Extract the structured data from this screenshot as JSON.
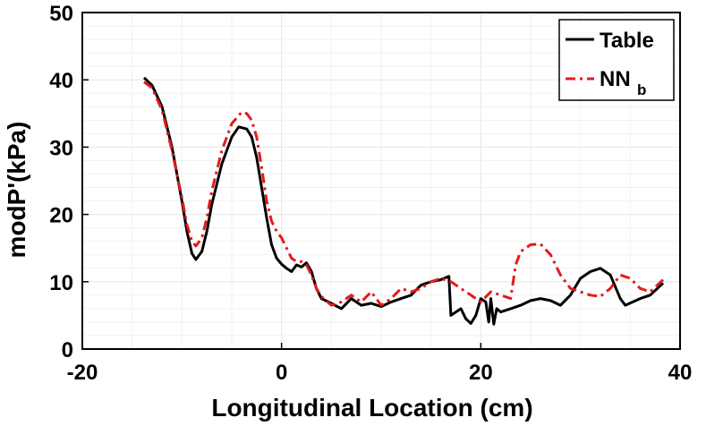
{
  "chart_data": {
    "type": "line",
    "title": "",
    "xlabel": "Longitudinal Location (cm)",
    "ylabel": "modP'(kPa)",
    "xlim": [
      -20,
      40
    ],
    "ylim": [
      0,
      50
    ],
    "xticks": [
      -20,
      0,
      20,
      40
    ],
    "yticks": [
      0,
      10,
      20,
      30,
      40,
      50
    ],
    "xtick_labels": [
      "-20",
      "0",
      "20",
      "40"
    ],
    "ytick_labels": [
      "0",
      "10",
      "20",
      "30",
      "40",
      "50"
    ],
    "grid": true,
    "legend_position": "top-right",
    "series": [
      {
        "name": "Table",
        "name_main": "Table",
        "name_sub": "",
        "color": "#000000",
        "dash": "solid",
        "points": [
          [
            -13.8,
            40.3
          ],
          [
            -13,
            39.2
          ],
          [
            -12,
            36.0
          ],
          [
            -11,
            30.0
          ],
          [
            -10,
            22.0
          ],
          [
            -9.5,
            17.5
          ],
          [
            -9,
            14.2
          ],
          [
            -8.6,
            13.3
          ],
          [
            -8,
            14.5
          ],
          [
            -7.5,
            17.5
          ],
          [
            -7,
            21.5
          ],
          [
            -6,
            27.5
          ],
          [
            -5,
            31.5
          ],
          [
            -4.3,
            33.0
          ],
          [
            -3.5,
            32.7
          ],
          [
            -3,
            31.5
          ],
          [
            -2.5,
            28.5
          ],
          [
            -2,
            24.0
          ],
          [
            -1.5,
            19.5
          ],
          [
            -1,
            15.5
          ],
          [
            -0.5,
            13.5
          ],
          [
            0,
            12.6
          ],
          [
            0.5,
            12.0
          ],
          [
            1,
            11.5
          ],
          [
            1.5,
            12.5
          ],
          [
            2,
            12.2
          ],
          [
            2.5,
            12.8
          ],
          [
            3,
            11.5
          ],
          [
            3.5,
            9.0
          ],
          [
            4,
            7.5
          ],
          [
            5,
            6.8
          ],
          [
            6,
            6.0
          ],
          [
            7,
            7.5
          ],
          [
            8,
            6.5
          ],
          [
            9,
            6.8
          ],
          [
            10,
            6.3
          ],
          [
            11,
            7.0
          ],
          [
            12,
            7.5
          ],
          [
            13,
            8.0
          ],
          [
            14,
            9.5
          ],
          [
            15,
            10.0
          ],
          [
            16,
            10.3
          ],
          [
            16.8,
            10.8
          ],
          [
            17,
            5.0
          ],
          [
            17.5,
            5.5
          ],
          [
            18,
            6.0
          ],
          [
            18.5,
            4.5
          ],
          [
            19,
            3.8
          ],
          [
            19.5,
            5.0
          ],
          [
            20,
            7.5
          ],
          [
            20.5,
            7.0
          ],
          [
            20.8,
            4.0
          ],
          [
            21,
            7.5
          ],
          [
            21.3,
            3.7
          ],
          [
            21.6,
            6.0
          ],
          [
            22,
            5.5
          ],
          [
            23,
            6.0
          ],
          [
            24,
            6.5
          ],
          [
            25,
            7.2
          ],
          [
            26,
            7.5
          ],
          [
            27,
            7.2
          ],
          [
            28,
            6.5
          ],
          [
            29,
            8.0
          ],
          [
            30,
            10.5
          ],
          [
            31,
            11.5
          ],
          [
            32,
            12.0
          ],
          [
            33,
            11.0
          ],
          [
            34,
            7.5
          ],
          [
            34.5,
            6.5
          ],
          [
            36,
            7.5
          ],
          [
            37,
            8.0
          ],
          [
            38.3,
            9.8
          ]
        ]
      },
      {
        "name": "NN b",
        "name_main": "NN",
        "name_sub": "b",
        "color": "#e31a1c",
        "dash": "dashdot",
        "points": [
          [
            -13.8,
            39.7
          ],
          [
            -13,
            38.8
          ],
          [
            -12,
            35.5
          ],
          [
            -11,
            29.5
          ],
          [
            -10,
            22.5
          ],
          [
            -9.5,
            18.5
          ],
          [
            -9,
            16.0
          ],
          [
            -8.6,
            15.3
          ],
          [
            -8,
            16.5
          ],
          [
            -7.5,
            19.5
          ],
          [
            -7,
            23.5
          ],
          [
            -6,
            29.5
          ],
          [
            -5,
            33.5
          ],
          [
            -4,
            35.2
          ],
          [
            -3.5,
            35.0
          ],
          [
            -3,
            34.0
          ],
          [
            -2.5,
            31.5
          ],
          [
            -2,
            27.0
          ],
          [
            -1.5,
            22.0
          ],
          [
            -1,
            19.0
          ],
          [
            -0.5,
            17.5
          ],
          [
            0,
            16.5
          ],
          [
            0.5,
            15.0
          ],
          [
            1,
            13.5
          ],
          [
            1.5,
            13.0
          ],
          [
            2,
            13.0
          ],
          [
            2.5,
            12.5
          ],
          [
            3,
            11.0
          ],
          [
            3.5,
            9.0
          ],
          [
            4,
            7.8
          ],
          [
            5,
            6.5
          ],
          [
            6,
            7.0
          ],
          [
            7,
            8.0
          ],
          [
            8,
            7.0
          ],
          [
            9,
            8.5
          ],
          [
            10,
            6.5
          ],
          [
            11,
            7.5
          ],
          [
            12,
            9.0
          ],
          [
            13,
            8.5
          ],
          [
            14,
            9.0
          ],
          [
            15,
            10.0
          ],
          [
            16,
            10.5
          ],
          [
            17,
            10.0
          ],
          [
            18,
            9.0
          ],
          [
            19,
            8.0
          ],
          [
            20,
            7.0
          ],
          [
            21,
            8.5
          ],
          [
            22,
            8.0
          ],
          [
            23,
            7.5
          ],
          [
            23.5,
            12.5
          ],
          [
            24,
            14.5
          ],
          [
            25,
            15.5
          ],
          [
            26,
            15.6
          ],
          [
            27,
            14.0
          ],
          [
            28,
            11.0
          ],
          [
            29,
            9.0
          ],
          [
            30,
            8.5
          ],
          [
            31,
            8.0
          ],
          [
            32,
            7.8
          ],
          [
            33,
            9.0
          ],
          [
            34,
            11.0
          ],
          [
            35,
            10.5
          ],
          [
            36,
            9.0
          ],
          [
            37,
            8.5
          ],
          [
            38.3,
            10.3
          ]
        ]
      }
    ]
  }
}
